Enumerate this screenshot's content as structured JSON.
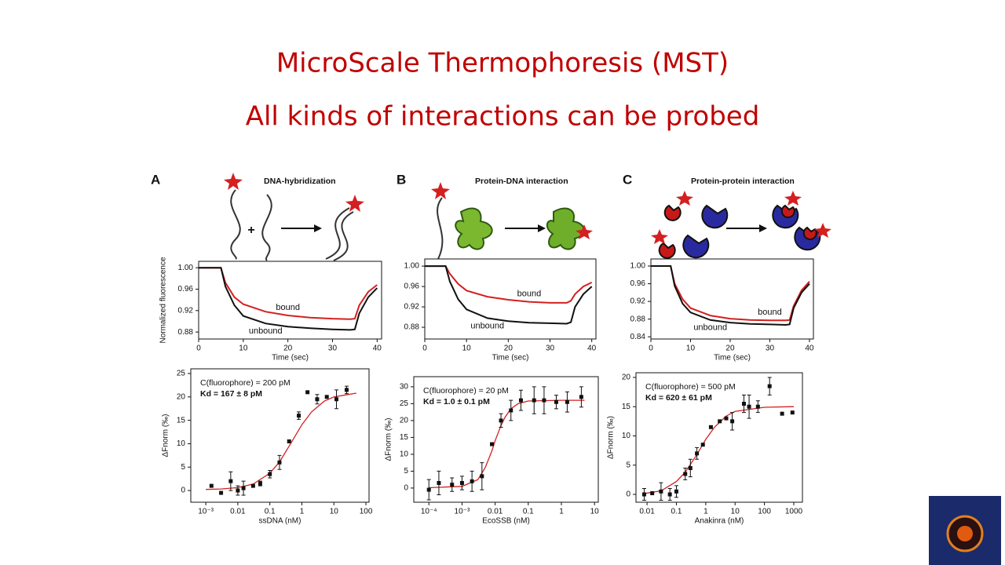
{
  "slide": {
    "title": "MicroScale Thermophoresis (MST)",
    "subtitle": "All kinds of interactions can be probed"
  },
  "chart_data": [
    {
      "type": "line",
      "panel_label": "A",
      "title": "DNA-hybridization",
      "y_label": "Normalized fluorescence",
      "x_label": "Time (sec)",
      "x": [
        0,
        2,
        4,
        5,
        6,
        8,
        10,
        15,
        20,
        25,
        30,
        34,
        35,
        36,
        38,
        40
      ],
      "series": [
        {
          "name": "bound",
          "color": "#d42020",
          "values": [
            1,
            1,
            1,
            1,
            0.972,
            0.945,
            0.932,
            0.918,
            0.911,
            0.907,
            0.905,
            0.904,
            0.905,
            0.93,
            0.955,
            0.968
          ]
        },
        {
          "name": "unbound",
          "color": "#111111",
          "values": [
            1,
            1,
            1,
            1,
            0.965,
            0.93,
            0.91,
            0.896,
            0.89,
            0.887,
            0.885,
            0.884,
            0.885,
            0.915,
            0.945,
            0.962
          ]
        }
      ],
      "xlim": [
        0,
        41
      ],
      "xticks": [
        0,
        10,
        20,
        30,
        40
      ],
      "ylim": [
        0.867,
        1.012
      ],
      "yticks": [
        {
          "value": 1,
          "label": "1.00"
        },
        {
          "value": 0.96,
          "label": "0.96"
        },
        {
          "value": 0.92,
          "label": "0.92"
        },
        {
          "value": 0.88,
          "label": "0.88"
        }
      ]
    },
    {
      "type": "scatter",
      "log_x": true,
      "annotations": [
        "C(fluorophore) = 200 pM",
        "Kd = 167 ± 8 pM"
      ],
      "x_label": "ssDNA (nM)",
      "y_label": "ΔFnorm (‰)",
      "color": "#111111",
      "x": [
        0.0015,
        0.003,
        0.006,
        0.01,
        0.015,
        0.03,
        0.05,
        0.1,
        0.2,
        0.4,
        0.8,
        1.5,
        3,
        6,
        12,
        25
      ],
      "values": [
        1,
        -0.5,
        2,
        0,
        0.5,
        1,
        1.5,
        3.5,
        6,
        10.5,
        16,
        21,
        19.5,
        20,
        19.5,
        21.5
      ],
      "errors": [
        null,
        null,
        2,
        1,
        1.5,
        null,
        0.5,
        0.8,
        1.5,
        null,
        0.8,
        null,
        1,
        null,
        2,
        0.8
      ],
      "fit": {
        "color": "#d42020",
        "x": [
          0.001,
          0.003,
          0.01,
          0.03,
          0.1,
          0.2,
          0.5,
          1,
          2,
          5,
          10,
          50
        ],
        "values": [
          0.24,
          0.33,
          0.61,
          1.38,
          3.7,
          6.1,
          10.6,
          14.07,
          16.8,
          19.1,
          20,
          20.8
        ]
      },
      "xlim": [
        0.00034,
        125
      ],
      "xticks": [
        {
          "value": 0.001,
          "label": "10⁻³"
        },
        0.01,
        0.1,
        1,
        10,
        100
      ],
      "ylim": [
        -2.5,
        26
      ],
      "yticks": [
        0,
        5,
        10,
        15,
        20,
        25
      ]
    },
    {
      "type": "line",
      "panel_label": "B",
      "title": "Protein-DNA interaction",
      "x_label": "Time (sec)",
      "x": [
        0,
        2,
        4,
        5,
        6,
        8,
        10,
        15,
        20,
        25,
        30,
        34,
        35,
        36,
        38,
        40
      ],
      "series": [
        {
          "name": "bound",
          "color": "#d42020",
          "values": [
            1,
            1,
            1,
            1,
            0.985,
            0.965,
            0.952,
            0.94,
            0.934,
            0.93,
            0.928,
            0.928,
            0.932,
            0.945,
            0.96,
            0.968
          ]
        },
        {
          "name": "unbound",
          "color": "#111111",
          "values": [
            1,
            1,
            1,
            1,
            0.97,
            0.935,
            0.915,
            0.898,
            0.892,
            0.889,
            0.888,
            0.887,
            0.89,
            0.92,
            0.945,
            0.96
          ]
        }
      ],
      "xlim": [
        0,
        41
      ],
      "xticks": [
        0,
        10,
        20,
        30,
        40
      ],
      "ylim": [
        0.857,
        1.014
      ],
      "yticks": [
        {
          "value": 1,
          "label": "1.00"
        },
        {
          "value": 0.96,
          "label": "0.96"
        },
        {
          "value": 0.92,
          "label": "0.92"
        },
        {
          "value": 0.88,
          "label": "0.88"
        }
      ]
    },
    {
      "type": "scatter",
      "log_x": true,
      "annotations": [
        "C(fluorophore) = 20 pM",
        "Kd = 1.0 ± 0.1 pM"
      ],
      "x_label": "EcoSSB (nM)",
      "y_label": "ΔFnorm (‰)",
      "color": "#111111",
      "x": [
        0.0001,
        0.0002,
        0.0005,
        0.001,
        0.002,
        0.004,
        0.008,
        0.015,
        0.03,
        0.06,
        0.15,
        0.3,
        0.7,
        1.5,
        4
      ],
      "values": [
        -0.5,
        1.5,
        1,
        1.5,
        2,
        3.5,
        13,
        20,
        23,
        26,
        26,
        26,
        25.5,
        25.5,
        27
      ],
      "errors": [
        3,
        3.5,
        2,
        2,
        3,
        4,
        null,
        2,
        3,
        3,
        4,
        4,
        2,
        3,
        3
      ],
      "fit": {
        "color": "#d42020",
        "x": [
          0.0001,
          0.001,
          0.003,
          0.005,
          0.008,
          0.01,
          0.015,
          0.02,
          0.03,
          0.05,
          0.1,
          1,
          5
        ],
        "values": [
          0.1,
          0.5,
          2.5,
          6,
          11,
          14,
          18.5,
          21,
          23.5,
          25,
          25.8,
          26,
          26
        ]
      },
      "xlim": [
        3.5e-05,
        13
      ],
      "xticks": [
        {
          "value": 0.0001,
          "label": "10⁻⁴"
        },
        {
          "value": 0.001,
          "label": "10⁻³"
        },
        0.01,
        0.1,
        1,
        10
      ],
      "ylim": [
        -4.2,
        33
      ],
      "yticks": [
        0,
        5,
        10,
        15,
        20,
        25,
        30
      ]
    },
    {
      "type": "line",
      "panel_label": "C",
      "title": "Protein-protein interaction",
      "x_label": "Time (sec)",
      "x": [
        0,
        2,
        4,
        5,
        6,
        8,
        10,
        15,
        20,
        25,
        30,
        34,
        35,
        36,
        38,
        40
      ],
      "series": [
        {
          "name": "bound",
          "color": "#d42020",
          "values": [
            1,
            1,
            1,
            1,
            0.96,
            0.925,
            0.905,
            0.888,
            0.881,
            0.878,
            0.877,
            0.877,
            0.878,
            0.91,
            0.945,
            0.965
          ]
        },
        {
          "name": "unbound",
          "color": "#111111",
          "values": [
            1,
            1,
            1,
            1,
            0.955,
            0.915,
            0.895,
            0.878,
            0.872,
            0.869,
            0.868,
            0.867,
            0.868,
            0.905,
            0.94,
            0.96
          ]
        }
      ],
      "xlim": [
        0,
        41
      ],
      "xticks": [
        0,
        10,
        20,
        30,
        40
      ],
      "ylim": [
        0.835,
        1.016
      ],
      "yticks": [
        {
          "value": 1,
          "label": "1.00"
        },
        {
          "value": 0.96,
          "label": "0.96"
        },
        {
          "value": 0.92,
          "label": "0.92"
        },
        {
          "value": 0.88,
          "label": "0.88"
        },
        {
          "value": 0.84,
          "label": "0.84"
        }
      ]
    },
    {
      "type": "scatter",
      "log_x": true,
      "annotations": [
        "C(fluorophore) = 500 pM",
        "Kd = 620 ± 61 pM"
      ],
      "x_label": "Anakinra (nM)",
      "y_label": "ΔFnorm (‰)",
      "color": "#111111",
      "x": [
        0.008,
        0.015,
        0.03,
        0.06,
        0.1,
        0.2,
        0.3,
        0.5,
        0.8,
        1.5,
        3,
        5,
        8,
        20,
        30,
        60,
        150,
        400,
        900
      ],
      "values": [
        0,
        0.2,
        0.5,
        0,
        0.5,
        3.5,
        4.5,
        7,
        8.5,
        11.5,
        12.5,
        13,
        12.5,
        15.5,
        15,
        15,
        18.5,
        13.8,
        14
      ],
      "errors": [
        1,
        null,
        1.5,
        1,
        1,
        1,
        1.5,
        1,
        null,
        null,
        null,
        null,
        1.5,
        1.5,
        2,
        1,
        1.5,
        null,
        null
      ],
      "fit": {
        "color": "#d42020",
        "x": [
          0.007,
          0.03,
          0.1,
          0.2,
          0.5,
          1,
          2,
          5,
          10,
          100,
          1000
        ],
        "values": [
          0.1,
          0.6,
          2.2,
          3.8,
          6.8,
          9.4,
          11.5,
          13.4,
          14.2,
          14.9,
          15
        ]
      },
      "xlim": [
        0.0042,
        1970
      ],
      "xticks": [
        0.01,
        0.1,
        1,
        10,
        100,
        1000
      ],
      "ylim": [
        -1.34,
        20.8
      ],
      "yticks": [
        0,
        5,
        10,
        15,
        20
      ]
    }
  ]
}
